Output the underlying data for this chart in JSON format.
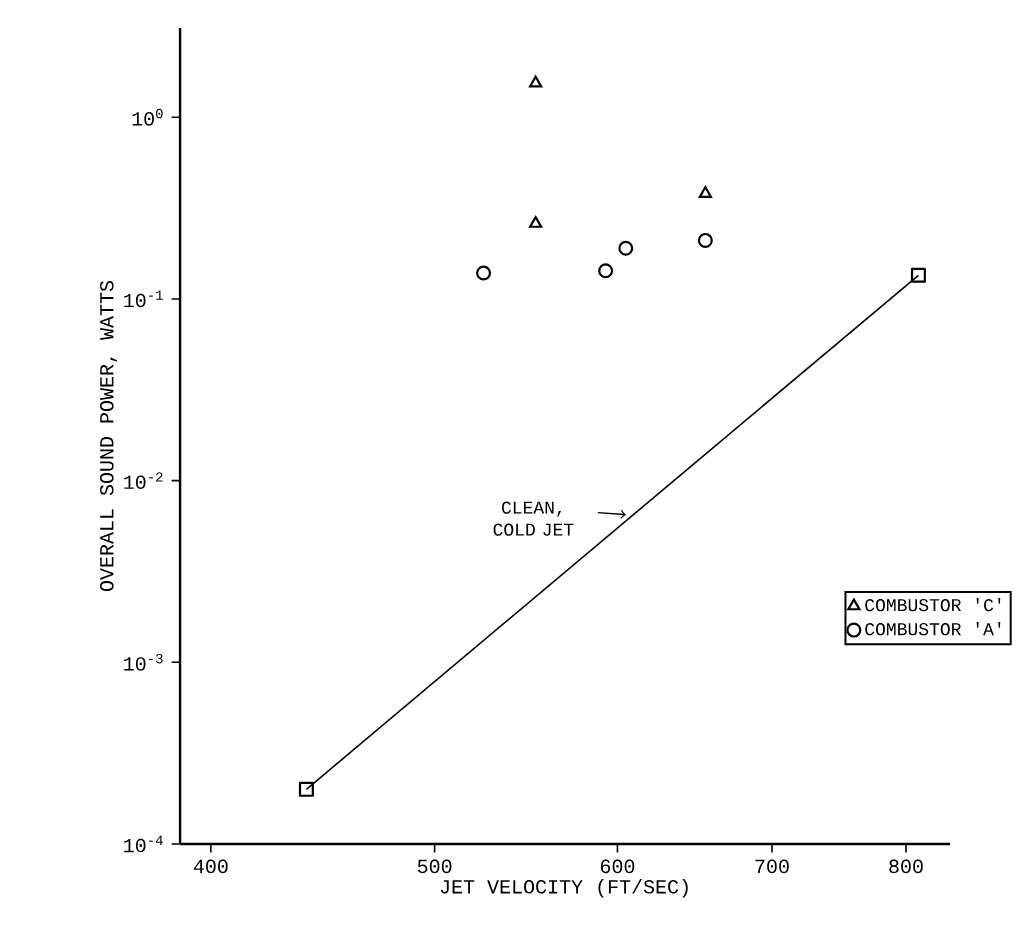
{
  "chart_data": {
    "type": "scatter",
    "xlabel": "JET VELOCITY (FT/SEC)",
    "ylabel": "OVERALL SOUND POWER, WATTS",
    "log": "xy",
    "grid": false,
    "legend": "right",
    "xlim": [
      388,
      836
    ],
    "ylim": [
      0.0001,
      3.1
    ],
    "xticks": [
      400,
      500,
      600,
      700,
      800
    ],
    "yticks": [
      {
        "value": 0.0001,
        "label": "10$^{-4}$"
      },
      {
        "value": 0.001,
        "label": "10$^{-3}$"
      },
      {
        "value": 0.01,
        "label": "10$^{-2}$"
      },
      {
        "value": 0.1,
        "label": "10$^{-1}$"
      },
      {
        "value": 1,
        "label": "10$^{0}$"
      }
    ],
    "series": [
      {
        "name": "COMBUSTOR 'C'",
        "type": "scatter",
        "marker": "triangle",
        "color": "#000000",
        "x": [
          553,
          553,
          655
        ],
        "values": [
          1.54,
          0.26,
          0.38
        ]
      },
      {
        "name": "COMBUSTOR 'A'",
        "type": "scatter",
        "marker": "circle",
        "color": "#000000",
        "x": [
          525,
          593,
          605,
          655
        ],
        "values": [
          0.139,
          0.143,
          0.19,
          0.21
        ]
      },
      {
        "type": "line",
        "marker": "square",
        "line_style": "solid",
        "color": "#000000",
        "x": [
          440,
          810
        ],
        "values": [
          0.0002,
          0.135
        ]
      }
    ],
    "annotations": [
      {
        "text": "CLEAN, COLD JET",
        "x": 605,
        "y": 0.0065
      }
    ]
  }
}
